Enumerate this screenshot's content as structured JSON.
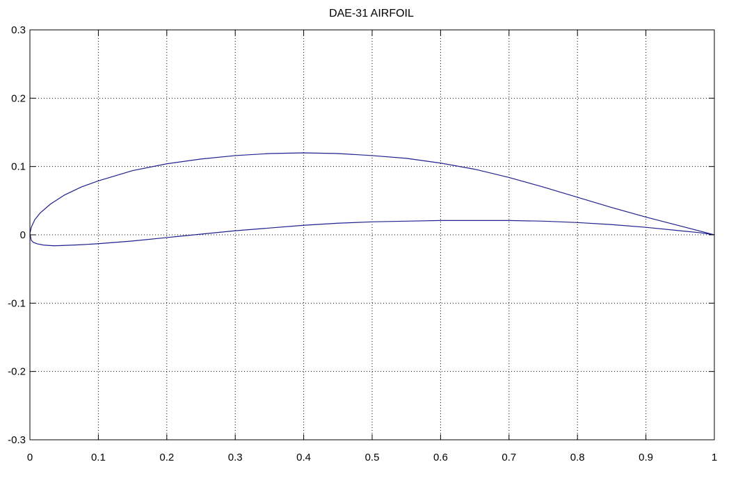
{
  "chart_data": {
    "type": "line",
    "title": "DAE-31 AIRFOIL",
    "xlabel": "",
    "ylabel": "",
    "xlim": [
      0,
      1
    ],
    "ylim": [
      -0.3,
      0.3
    ],
    "x_ticks": [
      0,
      0.1,
      0.2,
      0.3,
      0.4,
      0.5,
      0.6,
      0.7,
      0.8,
      0.9,
      1
    ],
    "x_tick_labels": [
      "0",
      "0.1",
      "0.2",
      "0.3",
      "0.4",
      "0.5",
      "0.6",
      "0.7",
      "0.8",
      "0.9",
      "1"
    ],
    "y_ticks": [
      -0.3,
      -0.2,
      -0.1,
      0,
      0.1,
      0.2,
      0.3
    ],
    "y_tick_labels": [
      "-0.3",
      "-0.2",
      "-0.1",
      "0",
      "0.1",
      "0.2",
      "0.3"
    ],
    "grid": true,
    "series": [
      {
        "color": "#1f1f8f",
        "x": [
          1.0,
          0.95,
          0.9,
          0.85,
          0.8,
          0.75,
          0.7,
          0.65,
          0.6,
          0.55,
          0.5,
          0.45,
          0.4,
          0.35,
          0.3,
          0.25,
          0.2,
          0.15,
          0.1,
          0.075,
          0.05,
          0.03,
          0.015,
          0.007,
          0.002,
          0.0,
          0.002,
          0.005,
          0.01,
          0.02,
          0.035,
          0.05,
          0.075,
          0.1,
          0.15,
          0.2,
          0.25,
          0.3,
          0.35,
          0.4,
          0.45,
          0.5,
          0.55,
          0.6,
          0.65,
          0.7,
          0.75,
          0.8,
          0.85,
          0.9,
          0.95,
          0.98,
          1.0
        ],
        "y": [
          0.0,
          0.013,
          0.026,
          0.04,
          0.055,
          0.07,
          0.084,
          0.096,
          0.105,
          0.112,
          0.116,
          0.119,
          0.12,
          0.119,
          0.116,
          0.111,
          0.104,
          0.094,
          0.079,
          0.07,
          0.058,
          0.045,
          0.032,
          0.022,
          0.011,
          0.002,
          -0.008,
          -0.011,
          -0.013,
          -0.015,
          -0.016,
          -0.0155,
          -0.0145,
          -0.013,
          -0.009,
          -0.004,
          0.001,
          0.006,
          0.01,
          0.014,
          0.017,
          0.019,
          0.02,
          0.021,
          0.021,
          0.021,
          0.02,
          0.018,
          0.015,
          0.011,
          0.006,
          0.003,
          0.0
        ]
      }
    ]
  }
}
